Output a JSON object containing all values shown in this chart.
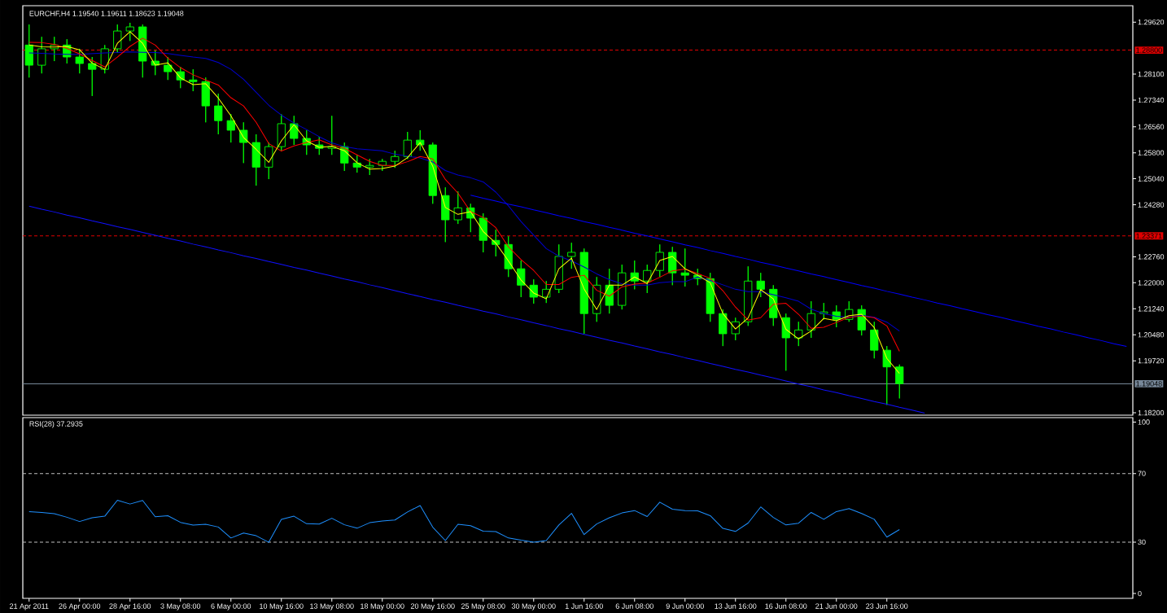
{
  "chart_data": [
    {
      "type": "candlestick",
      "title": "EURCHF,H4 1.19540 1.19611 1.18623 1.19048",
      "color": "#00ff00",
      "categories": [
        null,
        null,
        null,
        null,
        null,
        null,
        null,
        null,
        null,
        null,
        null,
        null,
        null,
        null,
        null,
        null,
        null,
        null,
        null,
        null,
        null,
        null,
        null,
        null,
        null,
        null,
        null,
        null,
        null,
        null,
        null,
        null,
        null,
        null,
        null,
        null,
        null,
        null,
        null,
        null,
        null,
        null,
        null,
        null,
        null,
        null,
        null,
        null,
        null,
        null,
        null,
        null,
        null,
        null,
        null,
        null,
        null,
        null,
        null,
        null,
        null,
        null,
        null,
        null,
        null,
        null,
        null,
        null,
        null,
        null,
        null,
        null,
        null,
        null,
        null,
        null,
        null,
        null,
        null,
        null,
        null,
        null,
        null,
        null,
        null,
        null,
        null,
        null
      ],
      "ohlc": [
        [
          1.2895,
          1.2955,
          1.28,
          1.2836
        ],
        [
          1.2836,
          1.2919,
          1.2812,
          1.2884
        ],
        [
          1.2884,
          1.2919,
          1.2848,
          1.2895
        ],
        [
          1.2895,
          1.2912,
          1.2841,
          1.286
        ],
        [
          1.286,
          1.2884,
          1.2812,
          1.2841
        ],
        [
          1.2841,
          1.286,
          1.2746,
          1.2824
        ],
        [
          1.2824,
          1.2895,
          1.2812,
          1.2884
        ],
        [
          1.2884,
          1.2955,
          1.2872,
          1.2936
        ],
        [
          1.2936,
          1.296,
          1.2907,
          1.2948
        ],
        [
          1.2948,
          1.2955,
          1.28,
          1.2848
        ],
        [
          1.2848,
          1.2879,
          1.2807,
          1.2836
        ],
        [
          1.2836,
          1.286,
          1.2793,
          1.2817
        ],
        [
          1.2817,
          1.2831,
          1.2769,
          1.2793
        ],
        [
          1.2793,
          1.2824,
          1.276,
          1.2788
        ],
        [
          1.2788,
          1.28,
          1.2669,
          1.2717
        ],
        [
          1.2717,
          1.2753,
          1.2634,
          1.2674
        ],
        [
          1.2674,
          1.2693,
          1.261,
          1.2646
        ],
        [
          1.2646,
          1.2669,
          1.255,
          1.261
        ],
        [
          1.261,
          1.2634,
          1.2484,
          1.2538
        ],
        [
          1.2538,
          1.261,
          1.2503,
          1.2598
        ],
        [
          1.2598,
          1.2693,
          1.2586,
          1.2665
        ],
        [
          1.2665,
          1.2688,
          1.2603,
          1.2622
        ],
        [
          1.2622,
          1.2646,
          1.2574,
          1.2603
        ],
        [
          1.2603,
          1.2627,
          1.2574,
          1.2593
        ],
        [
          1.2593,
          1.2688,
          1.2574,
          1.2598
        ],
        [
          1.2598,
          1.261,
          1.2527,
          1.255
        ],
        [
          1.255,
          1.2574,
          1.2522,
          1.2538
        ],
        [
          1.2538,
          1.2562,
          1.2515,
          1.2543
        ],
        [
          1.2543,
          1.2562,
          1.2527,
          1.2555
        ],
        [
          1.2555,
          1.2586,
          1.2536,
          1.2569
        ],
        [
          1.2569,
          1.2641,
          1.2562,
          1.2617
        ],
        [
          1.2617,
          1.2646,
          1.2586,
          1.2603
        ],
        [
          1.2603,
          1.261,
          1.2431,
          1.2455
        ],
        [
          1.2455,
          1.2479,
          1.2319,
          1.2384
        ],
        [
          1.2384,
          1.2467,
          1.2372,
          1.2419
        ],
        [
          1.2419,
          1.2431,
          1.2348,
          1.2389
        ],
        [
          1.2389,
          1.2403,
          1.2289,
          1.2324
        ],
        [
          1.2324,
          1.2355,
          1.2277,
          1.2312
        ],
        [
          1.2312,
          1.2336,
          1.2217,
          1.2241
        ],
        [
          1.2241,
          1.2265,
          1.2158,
          1.2193
        ],
        [
          1.2193,
          1.221,
          1.2139,
          1.2158
        ],
        [
          1.2158,
          1.2205,
          1.2141,
          1.2181
        ],
        [
          1.2181,
          1.2312,
          1.217,
          1.2277
        ],
        [
          1.2277,
          1.2317,
          1.2241,
          1.2289
        ],
        [
          1.2289,
          1.23,
          1.2051,
          1.211
        ],
        [
          1.211,
          1.2217,
          1.2086,
          1.2193
        ],
        [
          1.2193,
          1.2241,
          1.211,
          1.2134
        ],
        [
          1.2134,
          1.2253,
          1.2122,
          1.2229
        ],
        [
          1.2229,
          1.2265,
          1.2181,
          1.2205
        ],
        [
          1.2205,
          1.2253,
          1.217,
          1.2236
        ],
        [
          1.2236,
          1.2312,
          1.2217,
          1.2289
        ],
        [
          1.2289,
          1.2305,
          1.2193,
          1.2229
        ],
        [
          1.2229,
          1.23,
          1.2189,
          1.2222
        ],
        [
          1.2222,
          1.2241,
          1.2193,
          1.2212
        ],
        [
          1.2212,
          1.2229,
          1.2086,
          1.211
        ],
        [
          1.211,
          1.2122,
          1.2015,
          1.2051
        ],
        [
          1.2051,
          1.2098,
          1.2032,
          1.2086
        ],
        [
          1.2086,
          1.2248,
          1.2074,
          1.2205
        ],
        [
          1.2205,
          1.2229,
          1.2158,
          1.2181
        ],
        [
          1.2181,
          1.2193,
          1.2074,
          1.2098
        ],
        [
          1.2098,
          1.211,
          1.1943,
          1.2039
        ],
        [
          1.2039,
          1.2086,
          1.2015,
          1.2062
        ],
        [
          1.2062,
          1.2146,
          1.2039,
          1.211
        ],
        [
          1.211,
          1.2141,
          1.2093,
          1.2115
        ],
        [
          1.2115,
          1.2134,
          1.207,
          1.2093
        ],
        [
          1.2093,
          1.2146,
          1.2086,
          1.2122
        ],
        [
          1.2122,
          1.2134,
          1.2046,
          1.2062
        ],
        [
          1.2062,
          1.2086,
          1.1979,
          1.2003
        ],
        [
          1.2003,
          1.2015,
          1.1843,
          1.1954
        ],
        [
          1.1954,
          1.1961,
          1.1862,
          1.1905
        ],
        null,
        null,
        null,
        null,
        null,
        null,
        null,
        null,
        null,
        null,
        null,
        null,
        null,
        null,
        null,
        null,
        null,
        null
      ],
      "series": [
        {
          "type": "line",
          "color": "#0000cd",
          "values": [
            1.2872,
            1.2871,
            1.2869,
            1.2868,
            1.2868,
            1.287,
            1.2872,
            1.2873,
            1.2875,
            1.2874,
            1.2873,
            1.287,
            1.2865,
            1.286,
            1.2856,
            1.2844,
            1.2824,
            1.2795,
            1.2757,
            1.2719,
            1.269,
            1.2667,
            1.2648,
            1.2627,
            1.2609,
            1.2598,
            1.2592,
            1.2589,
            1.2586,
            1.2576,
            1.257,
            1.2565,
            1.2553,
            1.2528,
            1.2515,
            1.2507,
            1.2495,
            1.2465,
            1.2425,
            1.2379,
            1.2339,
            1.23,
            1.2278,
            1.2264,
            1.2246,
            1.2226,
            1.2209,
            1.2197,
            1.2193,
            1.2193,
            1.22,
            1.2203,
            1.2203,
            1.2217,
            1.2207,
            1.2194,
            1.2181,
            1.2174,
            1.2174,
            1.2165,
            1.2156,
            1.2146,
            1.2123,
            1.211,
            1.2102,
            1.2099,
            1.2105,
            1.2099,
            1.2085,
            1.2059,
            null,
            null,
            null,
            null,
            null,
            null,
            null,
            null,
            null,
            null,
            null,
            null,
            null,
            null,
            null,
            null,
            null,
            null
          ]
        },
        {
          "type": "line",
          "color": "#ff0000",
          "values": [
            1.2903,
            1.2902,
            1.2897,
            1.2885,
            1.2869,
            1.285,
            1.2831,
            1.286,
            1.2891,
            1.2915,
            1.2895,
            1.2857,
            1.2829,
            1.2808,
            1.2793,
            1.2778,
            1.2741,
            1.2717,
            1.2669,
            1.2607,
            1.2585,
            1.26,
            1.261,
            1.2618,
            1.2603,
            1.2593,
            1.2574,
            1.2555,
            1.2543,
            1.2543,
            1.2554,
            1.2569,
            1.2562,
            1.2502,
            1.2462,
            1.2408,
            1.2391,
            1.2361,
            1.2305,
            1.2268,
            1.2236,
            1.2195,
            1.2195,
            1.2216,
            1.2222,
            1.2178,
            1.2161,
            1.2188,
            1.2196,
            1.2199,
            1.2216,
            1.2235,
            1.224,
            1.2227,
            1.2213,
            1.2177,
            1.2129,
            1.2091,
            1.2098,
            1.2137,
            1.214,
            1.2108,
            1.2067,
            1.207,
            1.2084,
            1.2099,
            1.2103,
            1.2098,
            1.2074,
            1.2,
            null,
            null,
            null,
            null,
            null,
            null,
            null,
            null,
            null,
            null,
            null,
            null,
            null,
            null,
            null,
            null,
            null,
            null
          ]
        },
        {
          "type": "line",
          "color": "#ffff00",
          "values": [
            1.2895,
            1.289,
            1.2889,
            1.2891,
            1.2881,
            1.2842,
            1.2824,
            1.29,
            1.2934,
            1.29,
            1.2836,
            1.2843,
            1.2799,
            1.2779,
            1.2782,
            1.274,
            1.2688,
            1.2625,
            1.259,
            1.2552,
            1.2615,
            1.2662,
            1.2615,
            1.2596,
            1.2599,
            1.2586,
            1.2551,
            1.2532,
            1.2534,
            1.2541,
            1.2566,
            1.261,
            1.2541,
            1.242,
            1.24,
            1.2408,
            1.235,
            1.2316,
            1.2264,
            1.2208,
            1.217,
            1.2153,
            1.2241,
            1.2272,
            1.2182,
            1.2122,
            1.2193,
            1.2193,
            1.2217,
            1.2198,
            1.2265,
            1.2277,
            1.2241,
            1.2222,
            1.22,
            1.211,
            1.2065,
            1.2097,
            1.218,
            1.2153,
            1.2064,
            1.2036,
            1.2059,
            1.2096,
            1.2089,
            1.2104,
            1.2108,
            1.2069,
            1.1979,
            1.1935,
            null,
            null,
            null,
            null,
            null,
            null,
            null,
            null,
            null,
            null,
            null,
            null,
            null,
            null,
            null,
            null,
            null,
            null
          ]
        },
        {
          "type": "line",
          "color": "#0000ff",
          "values": [
            null,
            null,
            null,
            null,
            null,
            null,
            null,
            null,
            null,
            null,
            null,
            null,
            null,
            null,
            null,
            null,
            null,
            null,
            null,
            null,
            null,
            null,
            null,
            null,
            null,
            null,
            null,
            null,
            null,
            null,
            null,
            null,
            null,
            null,
            null,
            1.2456,
            1.2447,
            1.2439,
            1.243,
            1.2422,
            1.2413,
            1.2405,
            1.2396,
            1.2388,
            1.2379,
            1.2371,
            1.2362,
            1.2354,
            1.2345,
            1.2337,
            1.2328,
            1.232,
            1.2311,
            1.2303,
            1.2294,
            1.2286,
            1.2277,
            1.2269,
            1.226,
            1.2252,
            1.2243,
            1.2235,
            1.2226,
            1.2218,
            1.2209,
            1.2201,
            1.2192,
            1.2184,
            1.2175,
            1.2167,
            1.2158,
            1.215,
            1.2141,
            1.2133,
            1.2124,
            1.2116,
            1.2107,
            1.2099,
            1.209,
            1.2082,
            1.2073,
            1.2065,
            1.2056,
            1.2048,
            1.2039,
            1.2031,
            1.2022,
            1.2014
          ]
        },
        {
          "type": "line",
          "color": "#1010ff",
          "values": [
            1.2424,
            1.2415,
            1.2407,
            1.2398,
            1.239,
            1.2381,
            1.2373,
            1.2364,
            1.2356,
            1.2347,
            1.2339,
            1.233,
            1.2322,
            1.2313,
            1.2305,
            1.2296,
            1.2288,
            1.2279,
            1.2271,
            1.2262,
            1.2254,
            1.2245,
            1.2237,
            1.2228,
            1.222,
            1.2211,
            1.2203,
            1.2194,
            1.2186,
            1.2177,
            1.2168,
            1.216,
            1.2151,
            1.2143,
            1.2134,
            1.2126,
            1.2117,
            1.2109,
            1.21,
            1.2092,
            1.2083,
            1.2075,
            1.2066,
            1.2058,
            1.2049,
            1.2041,
            1.2032,
            1.2024,
            1.2015,
            1.2007,
            1.1998,
            1.199,
            1.1981,
            1.1973,
            1.1964,
            1.1956,
            1.1947,
            1.1939,
            1.193,
            1.1922,
            1.1913,
            1.1904,
            1.1896,
            1.1887,
            1.1879,
            1.187,
            1.1862,
            1.1853,
            1.1845,
            1.1836,
            1.1828,
            1.1819,
            null,
            null,
            null,
            null,
            null,
            null,
            null,
            null,
            null,
            null,
            null,
            null,
            null,
            null,
            null,
            null
          ]
        }
      ],
      "ylim": [
        1.1813,
        1.301
      ],
      "yticks": [
        {
          "value": 1.2962,
          "label": "1.29620"
        },
        {
          "value": 1.281,
          "label": "1.28100"
        },
        {
          "value": 1.2734,
          "label": "1.27340"
        },
        {
          "value": 1.2656,
          "label": "1.26560"
        },
        {
          "value": 1.258,
          "label": "1.25800"
        },
        {
          "value": 1.2504,
          "label": "1.25040"
        },
        {
          "value": 1.2428,
          "label": "1.24280"
        },
        {
          "value": 1.2276,
          "label": "1.22760"
        },
        {
          "value": 1.22,
          "label": "1.22000"
        },
        {
          "value": 1.2124,
          "label": "1.21240"
        },
        {
          "value": 1.2048,
          "label": "1.20480"
        },
        {
          "value": 1.1972,
          "label": "1.19720"
        },
        {
          "value": 1.182,
          "label": "1.18200"
        }
      ],
      "ref_lines": [
        {
          "axis": "y",
          "value": 1.288,
          "label": "1.28800",
          "color": "#e00000",
          "line_style": "dashed"
        },
        {
          "axis": "y",
          "value": 1.23371,
          "label": "1.23371",
          "color": "#e00000",
          "line_style": "dashed"
        },
        {
          "axis": "y",
          "value": 1.19048,
          "label": "1.19048",
          "color": "#778899",
          "line_style": "solid"
        }
      ]
    },
    {
      "type": "line",
      "title": "RSI(28) 37.2935",
      "categories": [
        "21 Apr 2011",
        null,
        null,
        null,
        "26 Apr 00:00",
        null,
        null,
        null,
        "28 Apr 16:00",
        null,
        null,
        null,
        "3 May 08:00",
        null,
        null,
        null,
        "6 May 00:00",
        null,
        null,
        null,
        "10 May 16:00",
        null,
        null,
        null,
        "13 May 08:00",
        null,
        null,
        null,
        "18 May 00:00",
        null,
        null,
        null,
        "20 May 16:00",
        null,
        null,
        null,
        "25 May 08:00",
        null,
        null,
        null,
        "30 May 00:00",
        null,
        null,
        null,
        "1 Jun 16:00",
        null,
        null,
        null,
        "6 Jun 08:00",
        null,
        null,
        null,
        "9 Jun 00:00",
        null,
        null,
        null,
        "13 Jun 16:00",
        null,
        null,
        null,
        "16 Jun 08:00",
        null,
        null,
        null,
        "21 Jun 00:00",
        null,
        null,
        null,
        "23 Jun 16:00",
        null,
        null,
        null,
        null,
        null,
        null,
        null,
        null,
        null,
        null,
        null,
        null,
        null,
        null,
        null,
        null,
        null,
        null,
        null
      ],
      "series": [
        {
          "color": "#1e90ff",
          "values": [
            47.7,
            47.3,
            46.6,
            44.5,
            42.0,
            44.2,
            45.1,
            54.4,
            52.2,
            54.3,
            44.8,
            45.4,
            41.5,
            39.9,
            40.4,
            38.8,
            32.4,
            35.3,
            33.7,
            29.9,
            43.2,
            45.1,
            40.7,
            40.5,
            43.9,
            40.1,
            38.1,
            41.3,
            42.3,
            42.9,
            47.6,
            51.3,
            38.7,
            30.9,
            40.4,
            39.6,
            36.4,
            36.1,
            32.4,
            31.1,
            30.0,
            30.9,
            40.0,
            46.8,
            34.4,
            40.6,
            44.2,
            47.0,
            48.4,
            44.9,
            53.3,
            49.2,
            48.3,
            48.2,
            45.4,
            38.0,
            36.2,
            41.1,
            50.5,
            44.4,
            40.0,
            41.0,
            47.3,
            43.3,
            47.8,
            49.5,
            46.7,
            43.3,
            32.9,
            37.3,
            null,
            null,
            null,
            null,
            null,
            null,
            null,
            null,
            null,
            null,
            null,
            null,
            null,
            null,
            null,
            null,
            null,
            null
          ]
        }
      ],
      "ylim": [
        -2.8,
        102.6
      ],
      "yticks": [
        0,
        30,
        70,
        100
      ],
      "ref_lines": [
        {
          "axis": "y",
          "value": 70,
          "color": "#c0c0c0",
          "line_style": "dashed"
        },
        {
          "axis": "y",
          "value": 30,
          "color": "#c0c0c0",
          "line_style": "dashed"
        }
      ]
    }
  ]
}
